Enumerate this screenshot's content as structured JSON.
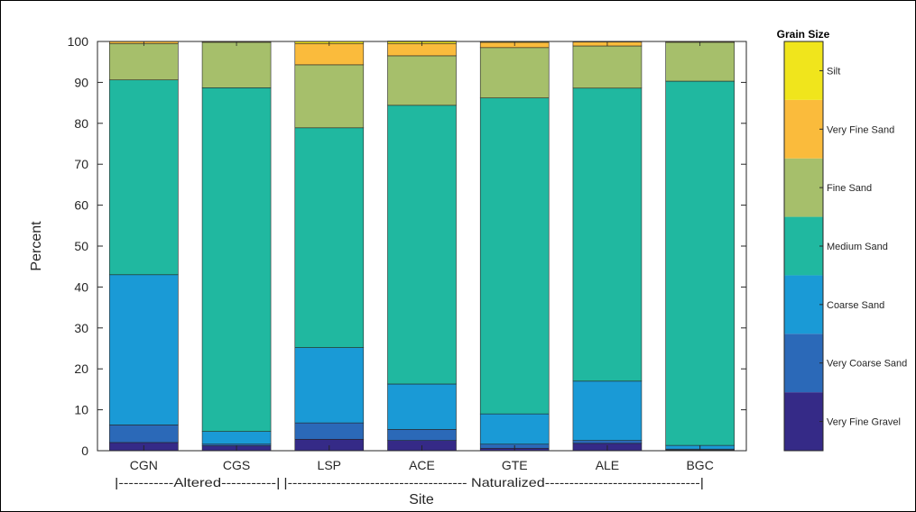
{
  "chart_data": {
    "type": "bar",
    "stacked": true,
    "xlabel": "Site",
    "ylabel": "Percent",
    "ylim": [
      0,
      100
    ],
    "yticks": [
      0,
      10,
      20,
      30,
      40,
      50,
      60,
      70,
      80,
      90,
      100
    ],
    "categories": [
      "CGN",
      "CGS",
      "LSP",
      "ACE",
      "GTE",
      "ALE",
      "BGC"
    ],
    "groups": [
      {
        "label": "|-----------Altered-----------|",
        "categories": [
          "CGN",
          "CGS"
        ]
      },
      {
        "label": "|------------------------------------- Naturalized--------------------------------|",
        "categories": [
          "LSP",
          "ACE",
          "GTE",
          "ALE",
          "BGC"
        ]
      }
    ],
    "legend_title": "Grain Size",
    "legend_placement": "right",
    "grid": false,
    "series": [
      {
        "name": "Very Fine Gravel",
        "color": "#352a87",
        "values": [
          2.0,
          1.2,
          2.8,
          2.5,
          0.6,
          1.8,
          0.2
        ]
      },
      {
        "name": "Very Coarse Sand",
        "color": "#2b69b8",
        "values": [
          4.3,
          0.4,
          4.0,
          2.7,
          1.0,
          0.7,
          0.2
        ]
      },
      {
        "name": "Coarse Sand",
        "color": "#1a9ad6",
        "values": [
          36.7,
          3.1,
          18.4,
          11.1,
          7.4,
          14.5,
          0.9
        ]
      },
      {
        "name": "Medium Sand",
        "color": "#20b8a0",
        "values": [
          47.6,
          84.0,
          53.7,
          68.1,
          77.2,
          71.6,
          89.0
        ]
      },
      {
        "name": "Fine Sand",
        "color": "#a6bf6b",
        "values": [
          8.9,
          11.1,
          15.4,
          12.1,
          12.3,
          10.3,
          9.5
        ]
      },
      {
        "name": "Very Fine Sand",
        "color": "#fabb3c",
        "values": [
          0.5,
          0.2,
          5.2,
          3.0,
          1.3,
          1.0,
          0.2
        ]
      },
      {
        "name": "Silt",
        "color": "#f0e51c",
        "values": [
          0.0,
          0.0,
          0.5,
          0.6,
          0.2,
          0.1,
          0.0
        ]
      }
    ]
  }
}
